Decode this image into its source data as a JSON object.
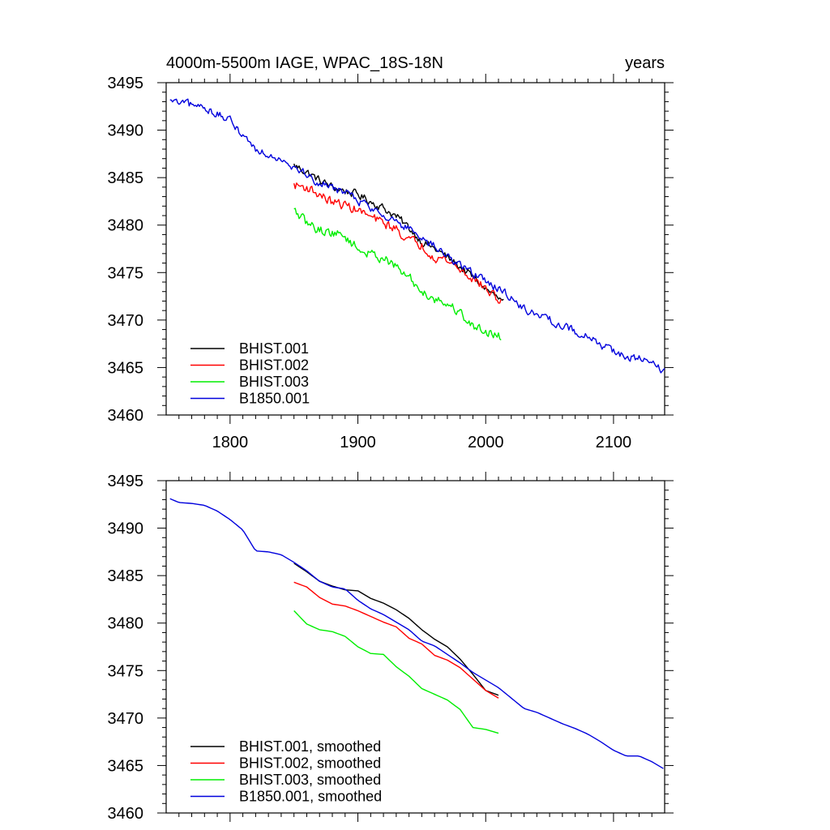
{
  "chart_data": [
    {
      "type": "line",
      "title": "4000m-5500m IAGE, WPAC_18S-18N",
      "units_label": "years",
      "xlim": [
        1750,
        2140
      ],
      "ylim": [
        3460,
        3495
      ],
      "x_ticks": [
        1800,
        1900,
        2000,
        2100
      ],
      "x_tick_labels": [
        "1800",
        "1900",
        "2000",
        "2100"
      ],
      "y_ticks": [
        3460,
        3465,
        3470,
        3475,
        3480,
        3485,
        3490,
        3495
      ],
      "y_tick_labels": [
        "3460",
        "3465",
        "3470",
        "3475",
        "3480",
        "3485",
        "3490",
        "3495"
      ],
      "legend_position": "bottom-left",
      "series": [
        {
          "name": "BHIST.001",
          "color": "#000000",
          "noise": 0.7,
          "points": [
            [
              1850,
              3486.3
            ],
            [
              1860,
              3485.6
            ],
            [
              1870,
              3484.7
            ],
            [
              1880,
              3484.0
            ],
            [
              1890,
              3483.6
            ],
            [
              1900,
              3483.2
            ],
            [
              1910,
              3482.5
            ],
            [
              1920,
              3481.8
            ],
            [
              1930,
              3480.9
            ],
            [
              1940,
              3479.7
            ],
            [
              1950,
              3478.3
            ],
            [
              1960,
              3477.5
            ],
            [
              1970,
              3476.6
            ],
            [
              1980,
              3475.6
            ],
            [
              1990,
              3474.5
            ],
            [
              2000,
              3473.3
            ],
            [
              2014,
              3471.8
            ]
          ]
        },
        {
          "name": "BHIST.002",
          "color": "#ff0000",
          "noise": 0.8,
          "points": [
            [
              1850,
              3484.2
            ],
            [
              1860,
              3484.0
            ],
            [
              1870,
              3483.2
            ],
            [
              1880,
              3482.4
            ],
            [
              1890,
              3482.1
            ],
            [
              1900,
              3481.6
            ],
            [
              1910,
              3480.8
            ],
            [
              1920,
              3480.2
            ],
            [
              1930,
              3479.6
            ],
            [
              1940,
              3478.4
            ],
            [
              1950,
              3477.9
            ],
            [
              1960,
              3476.7
            ],
            [
              1970,
              3476.3
            ],
            [
              1980,
              3475.3
            ],
            [
              1990,
              3474.4
            ],
            [
              2000,
              3473.3
            ],
            [
              2012,
              3471.9
            ]
          ]
        },
        {
          "name": "BHIST.003",
          "color": "#00ee00",
          "noise": 0.8,
          "points": [
            [
              1850,
              3481.5
            ],
            [
              1860,
              3480.2
            ],
            [
              1870,
              3479.5
            ],
            [
              1880,
              3479.2
            ],
            [
              1890,
              3478.8
            ],
            [
              1900,
              3477.5
            ],
            [
              1910,
              3476.9
            ],
            [
              1920,
              3476.6
            ],
            [
              1930,
              3475.5
            ],
            [
              1940,
              3474.5
            ],
            [
              1950,
              3473.0
            ],
            [
              1960,
              3472.3
            ],
            [
              1970,
              3471.7
            ],
            [
              1980,
              3470.8
            ],
            [
              1990,
              3469.3
            ],
            [
              2000,
              3468.9
            ],
            [
              2012,
              3468.2
            ]
          ]
        },
        {
          "name": "B1850.001",
          "color": "#0000dd",
          "noise": 0.7,
          "points": [
            [
              1753,
              3493.0
            ],
            [
              1760,
              3492.8
            ],
            [
              1770,
              3492.6
            ],
            [
              1780,
              3492.4
            ],
            [
              1790,
              3491.7
            ],
            [
              1800,
              3490.9
            ],
            [
              1810,
              3489.6
            ],
            [
              1820,
              3488.0
            ],
            [
              1830,
              3487.5
            ],
            [
              1840,
              3487.1
            ],
            [
              1850,
              3486.2
            ],
            [
              1860,
              3485.3
            ],
            [
              1870,
              3484.4
            ],
            [
              1880,
              3484.0
            ],
            [
              1890,
              3483.5
            ],
            [
              1900,
              3482.6
            ],
            [
              1910,
              3481.8
            ],
            [
              1920,
              3481.2
            ],
            [
              1930,
              3480.4
            ],
            [
              1940,
              3479.5
            ],
            [
              1950,
              3478.4
            ],
            [
              1960,
              3477.7
            ],
            [
              1970,
              3476.7
            ],
            [
              1980,
              3475.9
            ],
            [
              1990,
              3474.9
            ],
            [
              2000,
              3474.1
            ],
            [
              2010,
              3473.3
            ],
            [
              2020,
              3472.4
            ],
            [
              2030,
              3471.2
            ],
            [
              2040,
              3470.6
            ],
            [
              2050,
              3470.0
            ],
            [
              2060,
              3469.4
            ],
            [
              2070,
              3468.8
            ],
            [
              2080,
              3468.3
            ],
            [
              2090,
              3467.4
            ],
            [
              2100,
              3466.8
            ],
            [
              2110,
              3466.1
            ],
            [
              2120,
              3465.9
            ],
            [
              2130,
              3465.3
            ],
            [
              2140,
              3464.6
            ]
          ]
        }
      ]
    },
    {
      "type": "line",
      "xlim": [
        1750,
        2140
      ],
      "ylim": [
        3460,
        3495
      ],
      "x_ticks": [
        1800,
        1900,
        2000,
        2100
      ],
      "y_ticks": [
        3460,
        3465,
        3470,
        3475,
        3480,
        3485,
        3490,
        3495
      ],
      "y_tick_labels": [
        "3460",
        "3465",
        "3470",
        "3475",
        "3480",
        "3485",
        "3490",
        "3495"
      ],
      "legend_position": "bottom-left",
      "series": [
        {
          "name": "BHIST.001, smoothed",
          "color": "#000000",
          "noise": 0,
          "points": [
            [
              1850,
              3486.3
            ],
            [
              1860,
              3485.4
            ],
            [
              1870,
              3484.4
            ],
            [
              1880,
              3483.9
            ],
            [
              1890,
              3483.5
            ],
            [
              1900,
              3483.4
            ],
            [
              1910,
              3482.6
            ],
            [
              1920,
              3482.1
            ],
            [
              1930,
              3481.4
            ],
            [
              1940,
              3480.5
            ],
            [
              1950,
              3479.3
            ],
            [
              1960,
              3478.3
            ],
            [
              1970,
              3477.5
            ],
            [
              1980,
              3476.2
            ],
            [
              1990,
              3474.6
            ],
            [
              2000,
              3472.9
            ],
            [
              2010,
              3472.4
            ]
          ]
        },
        {
          "name": "BHIST.002, smoothed",
          "color": "#ff0000",
          "noise": 0,
          "points": [
            [
              1850,
              3484.3
            ],
            [
              1860,
              3483.8
            ],
            [
              1870,
              3482.7
            ],
            [
              1880,
              3482.0
            ],
            [
              1890,
              3481.8
            ],
            [
              1900,
              3481.3
            ],
            [
              1910,
              3480.7
            ],
            [
              1920,
              3480.1
            ],
            [
              1930,
              3479.6
            ],
            [
              1940,
              3478.4
            ],
            [
              1950,
              3477.8
            ],
            [
              1960,
              3476.6
            ],
            [
              1970,
              3476.1
            ],
            [
              1980,
              3475.3
            ],
            [
              1990,
              3474.1
            ],
            [
              2000,
              3472.9
            ],
            [
              2010,
              3472.1
            ]
          ]
        },
        {
          "name": "BHIST.003, smoothed",
          "color": "#00ee00",
          "noise": 0,
          "points": [
            [
              1850,
              3481.3
            ],
            [
              1860,
              3479.9
            ],
            [
              1870,
              3479.3
            ],
            [
              1880,
              3479.1
            ],
            [
              1890,
              3478.6
            ],
            [
              1900,
              3477.5
            ],
            [
              1910,
              3476.8
            ],
            [
              1920,
              3476.7
            ],
            [
              1930,
              3475.4
            ],
            [
              1940,
              3474.4
            ],
            [
              1950,
              3473.1
            ],
            [
              1960,
              3472.5
            ],
            [
              1970,
              3471.9
            ],
            [
              1980,
              3470.9
            ],
            [
              1990,
              3469.0
            ],
            [
              2000,
              3468.8
            ],
            [
              2010,
              3468.4
            ]
          ]
        },
        {
          "name": "B1850.001, smoothed",
          "color": "#0000dd",
          "noise": 0,
          "points": [
            [
              1753,
              3493.1
            ],
            [
              1760,
              3492.7
            ],
            [
              1770,
              3492.6
            ],
            [
              1780,
              3492.4
            ],
            [
              1790,
              3491.8
            ],
            [
              1800,
              3490.9
            ],
            [
              1810,
              3489.8
            ],
            [
              1820,
              3487.6
            ],
            [
              1830,
              3487.5
            ],
            [
              1840,
              3487.2
            ],
            [
              1850,
              3486.4
            ],
            [
              1860,
              3485.5
            ],
            [
              1870,
              3484.4
            ],
            [
              1880,
              3483.8
            ],
            [
              1890,
              3483.6
            ],
            [
              1900,
              3482.4
            ],
            [
              1910,
              3481.5
            ],
            [
              1920,
              3480.9
            ],
            [
              1930,
              3480.1
            ],
            [
              1940,
              3479.3
            ],
            [
              1950,
              3478.1
            ],
            [
              1960,
              3477.6
            ],
            [
              1970,
              3476.7
            ],
            [
              1980,
              3475.8
            ],
            [
              1990,
              3474.8
            ],
            [
              2000,
              3474.0
            ],
            [
              2010,
              3473.2
            ],
            [
              2020,
              3472.1
            ],
            [
              2030,
              3471.0
            ],
            [
              2040,
              3470.6
            ],
            [
              2050,
              3470.0
            ],
            [
              2060,
              3469.4
            ],
            [
              2070,
              3468.9
            ],
            [
              2080,
              3468.3
            ],
            [
              2090,
              3467.5
            ],
            [
              2100,
              3466.6
            ],
            [
              2110,
              3466.0
            ],
            [
              2120,
              3466.0
            ],
            [
              2130,
              3465.4
            ],
            [
              2140,
              3464.6
            ]
          ]
        }
      ]
    }
  ]
}
